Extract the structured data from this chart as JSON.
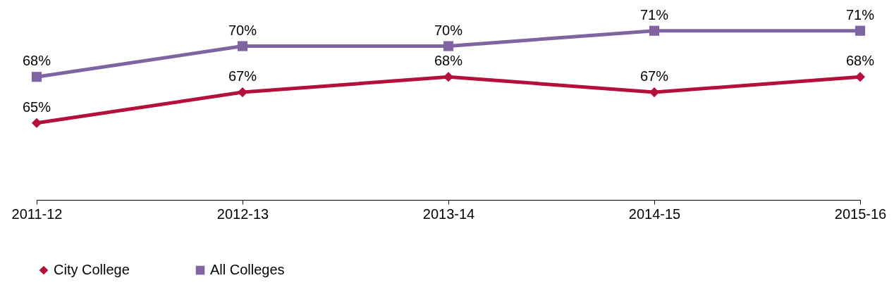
{
  "chart_data": {
    "type": "line",
    "categories": [
      "2011-12",
      "2012-13",
      "2013-14",
      "2014-15",
      "2015-16"
    ],
    "series": [
      {
        "name": "City College",
        "color": "#b5103c",
        "marker": "diamond",
        "values": [
          65,
          67,
          68,
          67,
          68
        ],
        "value_labels": [
          "65%",
          "67%",
          "68%",
          "67%",
          "68%"
        ]
      },
      {
        "name": "All Colleges",
        "color": "#8064a2",
        "marker": "square",
        "values": [
          68,
          70,
          70,
          71,
          71
        ],
        "value_labels": [
          "68%",
          "70%",
          "70%",
          "71%",
          "71%"
        ]
      }
    ],
    "ylim": [
      60,
      73
    ],
    "grid": false,
    "legend": "bottom",
    "line_style": "solid"
  }
}
